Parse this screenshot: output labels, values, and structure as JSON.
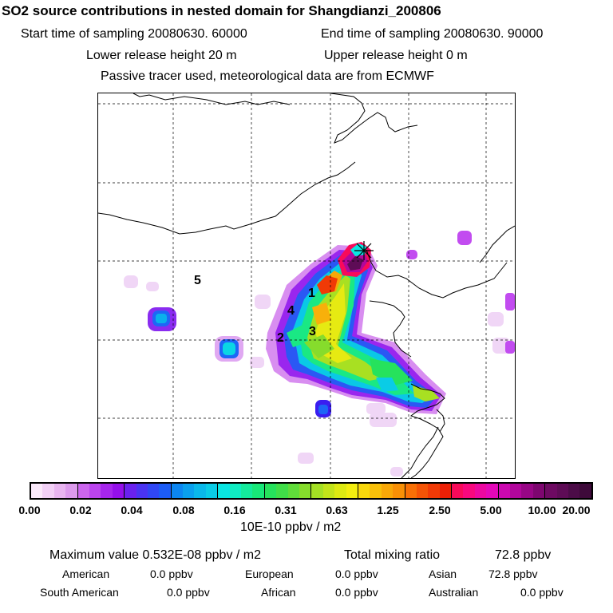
{
  "header": {
    "title": "SO2 source contributions in nested domain for Shangdianzi_200806",
    "start_label": "Start time of sampling 20080630. 60000",
    "end_label": "End time of sampling 20080630. 90000",
    "lower_release": "Lower release height   20 m",
    "upper_release": "Upper release height    0 m",
    "tracer_note": "Passive tracer used, meteorological data are from ECMWF"
  },
  "map": {
    "regions": [
      "1",
      "2",
      "3",
      "4",
      "5"
    ],
    "receptor_marker": "station-star-icon",
    "grid_style": "dashed"
  },
  "colorbar": {
    "ticks": [
      "0.00",
      "0.02",
      "0.04",
      "0.08",
      "0.16",
      "0.31",
      "0.63",
      "1.25",
      "2.50",
      "5.00",
      "10.00",
      "20.00"
    ],
    "units": "10E-10 ppbv / m2",
    "colors": [
      "#fbeafb",
      "#f2d0f6",
      "#e8b5f0",
      "#dc9aec",
      "#cc66ee",
      "#bb44ee",
      "#a626ec",
      "#9410ea",
      "#6a22ee",
      "#4a34f2",
      "#3047f4",
      "#1c5cf6",
      "#0c86f2",
      "#0aa0ee",
      "#0ab8ea",
      "#0acce6",
      "#0ae6e2",
      "#10ecc2",
      "#14ea9c",
      "#18e878",
      "#26e25c",
      "#40de48",
      "#60dc3a",
      "#86dc2c",
      "#a4e024",
      "#c2e41a",
      "#deea12",
      "#f4ee10",
      "#f8d80c",
      "#f8c00a",
      "#f8a808",
      "#f89006",
      "#f87006",
      "#f45406",
      "#f03a06",
      "#ec2006",
      "#f80a5a",
      "#f8087e",
      "#ec08a0",
      "#e408b8",
      "#cc08b0",
      "#b2069c",
      "#980686",
      "#7e0670",
      "#6e0a62",
      "#5e0c56",
      "#4c0c48",
      "#3e0a3a"
    ]
  },
  "stats": {
    "max_label": "Maximum value  0.532E-08 ppbv / m2",
    "total_label": "Total mixing ratio",
    "total_value": "72.8 ppbv",
    "american_label": "American",
    "american_value": "0.0 ppbv",
    "european_label": "European",
    "european_value": "0.0 ppbv",
    "asian_label": "Asian",
    "asian_value": "72.8 ppbv",
    "south_american_label": "South American",
    "south_american_value": "0.0 ppbv",
    "african_label": "African",
    "african_value": "0.0 ppbv",
    "australian_label": "Australian",
    "australian_value": "0.0 ppbv"
  }
}
